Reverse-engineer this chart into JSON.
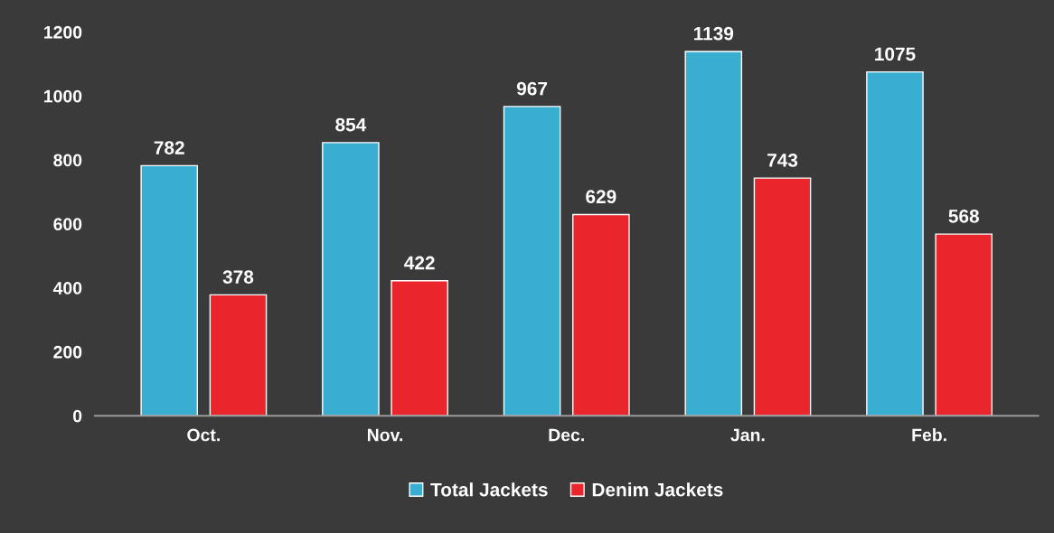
{
  "chart_data": {
    "type": "bar",
    "categories": [
      "Oct.",
      "Nov.",
      "Dec.",
      "Jan.",
      "Feb."
    ],
    "series": [
      {
        "name": "Total Jackets",
        "color": "#3aaed0",
        "values": [
          782,
          854,
          967,
          1139,
          1075
        ]
      },
      {
        "name": "Denim Jackets",
        "color": "#e8262c",
        "values": [
          378,
          422,
          629,
          743,
          568
        ]
      }
    ],
    "ylim": [
      0,
      1200
    ],
    "yticks": [
      0,
      200,
      400,
      600,
      800,
      1000,
      1200
    ],
    "data_labels": true,
    "grid": false,
    "legend": "bottom"
  }
}
